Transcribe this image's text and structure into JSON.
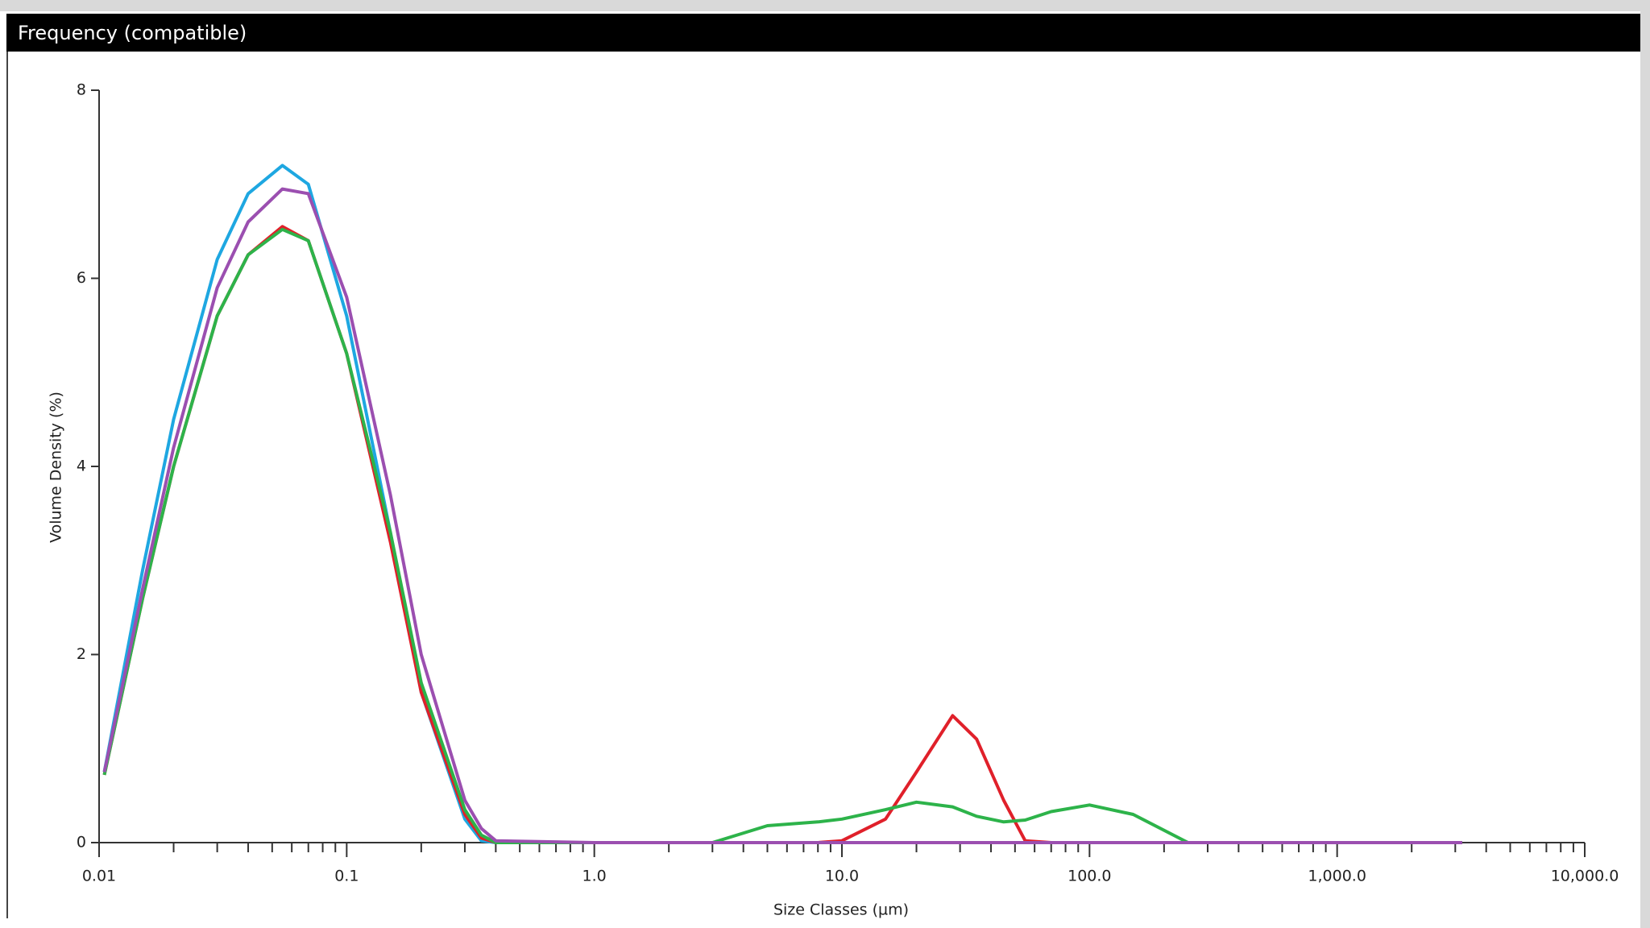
{
  "header": {
    "title": "Frequency (compatible)"
  },
  "chart_data": {
    "type": "line",
    "x_label": "Size Classes (µm)",
    "y_label": "Volume Density (%)",
    "xscale": "log",
    "grid": false,
    "xlim": [
      0.01,
      10000
    ],
    "ylim": [
      0,
      8
    ],
    "xticks": [
      0.01,
      0.1,
      {
        "value": 1,
        "label": "1.0"
      },
      {
        "value": 10,
        "label": "10.0"
      },
      {
        "value": 100,
        "label": "100.0"
      },
      {
        "value": 1000,
        "label": "1,000.0"
      },
      {
        "value": 10000,
        "label": "10,000.0"
      }
    ],
    "xminorticks": [
      0.02,
      0.03,
      0.04,
      0.05,
      0.06,
      0.07,
      0.08,
      0.09,
      0.2,
      0.3,
      0.4,
      0.5,
      0.6,
      0.7,
      0.8,
      0.9,
      2,
      3,
      4,
      5,
      6,
      7,
      8,
      9,
      20,
      30,
      40,
      50,
      60,
      70,
      80,
      90,
      200,
      300,
      400,
      500,
      600,
      700,
      800,
      900,
      2000,
      3000,
      4000,
      5000,
      6000,
      7000,
      8000,
      9000
    ],
    "yticks": [
      0,
      2,
      4,
      6,
      8
    ],
    "x": [
      0.0105,
      0.015,
      0.02,
      0.03,
      0.04,
      0.055,
      0.07,
      0.1,
      0.15,
      0.2,
      0.3,
      0.35,
      0.4,
      1,
      3,
      5,
      8,
      10,
      15,
      20,
      28,
      35,
      45,
      55,
      70,
      100,
      150,
      250,
      500,
      1000,
      3200
    ],
    "series": [
      {
        "color": "#1ea7e1",
        "values": [
          0.75,
          2.9,
          4.5,
          6.2,
          6.9,
          7.2,
          7.0,
          5.6,
          3.3,
          1.6,
          0.25,
          0.02,
          0,
          0,
          0,
          0,
          0,
          0,
          0,
          0,
          0,
          0,
          0,
          0,
          0,
          0,
          0,
          0,
          0,
          0,
          0
        ]
      },
      {
        "color": "#e0202a",
        "values": [
          0.72,
          2.6,
          4.0,
          5.6,
          6.25,
          6.55,
          6.4,
          5.2,
          3.2,
          1.6,
          0.3,
          0.05,
          0,
          0,
          0,
          0,
          0,
          0.02,
          0.25,
          0.75,
          1.35,
          1.1,
          0.45,
          0.02,
          0,
          0,
          0,
          0,
          0,
          0,
          0
        ]
      },
      {
        "color": "#2db34a",
        "values": [
          0.72,
          2.6,
          4.0,
          5.6,
          6.25,
          6.52,
          6.4,
          5.2,
          3.3,
          1.7,
          0.35,
          0.08,
          0,
          0,
          0,
          0.18,
          0.22,
          0.25,
          0.35,
          0.43,
          0.38,
          0.28,
          0.22,
          0.24,
          0.33,
          0.4,
          0.3,
          0,
          0,
          0,
          0
        ]
      },
      {
        "color": "#9b4fb0",
        "values": [
          0.75,
          2.7,
          4.2,
          5.9,
          6.6,
          6.95,
          6.9,
          5.8,
          3.7,
          2.0,
          0.45,
          0.15,
          0.02,
          0,
          0,
          0,
          0,
          0,
          0,
          0,
          0,
          0,
          0,
          0,
          0,
          0,
          0,
          0,
          0,
          0,
          0
        ]
      }
    ]
  }
}
